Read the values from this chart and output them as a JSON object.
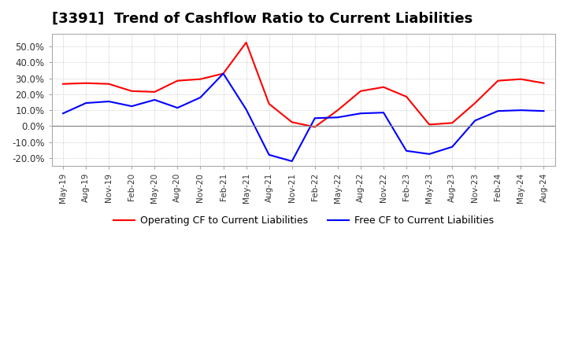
{
  "title": "[3391]  Trend of Cashflow Ratio to Current Liabilities",
  "title_fontsize": 13,
  "x_labels": [
    "May-19",
    "Aug-19",
    "Nov-19",
    "Feb-20",
    "May-20",
    "Aug-20",
    "Nov-20",
    "Feb-21",
    "May-21",
    "Aug-21",
    "Nov-21",
    "Feb-22",
    "May-22",
    "Aug-22",
    "Nov-22",
    "Feb-23",
    "May-23",
    "Aug-23",
    "Nov-23",
    "Feb-24",
    "May-24",
    "Aug-24"
  ],
  "operating_cf": [
    0.265,
    0.27,
    0.265,
    0.22,
    0.215,
    0.285,
    0.295,
    0.33,
    0.525,
    0.14,
    0.025,
    -0.005,
    0.1,
    0.22,
    0.245,
    0.185,
    0.01,
    0.02,
    0.145,
    0.285,
    0.295,
    0.27
  ],
  "free_cf": [
    0.08,
    0.145,
    0.155,
    0.125,
    0.165,
    0.115,
    0.18,
    0.33,
    0.105,
    -0.18,
    -0.22,
    0.05,
    0.055,
    0.08,
    0.085,
    -0.155,
    -0.175,
    -0.13,
    0.035,
    0.095,
    0.1,
    0.095
  ],
  "operating_color": "#ff0000",
  "free_color": "#0000ff",
  "ylim": [
    -0.25,
    0.58
  ],
  "yticks": [
    -0.2,
    -0.1,
    0.0,
    0.1,
    0.2,
    0.3,
    0.4,
    0.5
  ],
  "legend_labels": [
    "Operating CF to Current Liabilities",
    "Free CF to Current Liabilities"
  ],
  "background_color": "#ffffff",
  "grid_color": "#aaaaaa",
  "zero_line_color": "#888888"
}
